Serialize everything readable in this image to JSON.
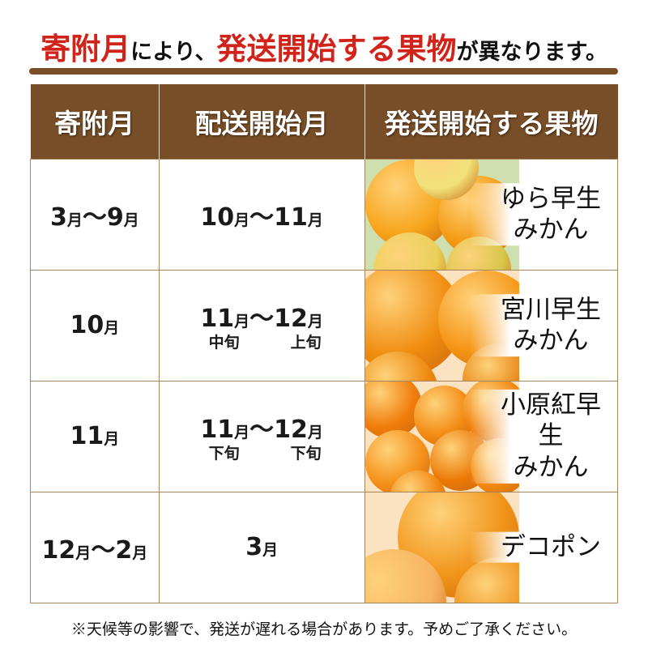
{
  "title": {
    "part1": "寄附月",
    "part2": "により、",
    "part3": "発送開始する果物",
    "part4": "が異なります。"
  },
  "colors": {
    "accent_red": "#d2231b",
    "header_brown": "#774e27",
    "orange": "#f28a12"
  },
  "headers": [
    "寄附月",
    "配送開始月",
    "発送開始する果物"
  ],
  "rows": [
    {
      "donation": [
        [
          "3",
          "月"
        ],
        [
          "～",
          ""
        ],
        [
          "9",
          "月"
        ]
      ],
      "delivery": [
        [
          "10",
          "月"
        ],
        [
          "～",
          ""
        ],
        [
          "11",
          "月"
        ]
      ],
      "sub": [],
      "fruit": [
        "ゆら早生",
        "みかん"
      ],
      "image": "yura-wase-mikan-photo"
    },
    {
      "donation": [
        [
          "10",
          "月"
        ]
      ],
      "delivery": [
        [
          "11",
          "月"
        ],
        [
          "～",
          ""
        ],
        [
          "12",
          "月"
        ]
      ],
      "sub": [
        "中旬",
        "上旬"
      ],
      "fruit": [
        "宮川早生",
        "みかん"
      ],
      "image": "miyagawa-wase-mikan-photo"
    },
    {
      "donation": [
        [
          "11",
          "月"
        ]
      ],
      "delivery": [
        [
          "11",
          "月"
        ],
        [
          "～",
          ""
        ],
        [
          "12",
          "月"
        ]
      ],
      "sub": [
        "下旬",
        "下旬"
      ],
      "fruit": [
        "小原紅早生",
        "みかん"
      ],
      "image": "ohara-beni-wase-mikan-photo"
    },
    {
      "donation": [
        [
          "12",
          "月"
        ],
        [
          "～",
          ""
        ],
        [
          "2",
          "月"
        ]
      ],
      "delivery": [
        [
          "3",
          "月"
        ]
      ],
      "sub": [],
      "fruit": [
        "デコポン"
      ],
      "image": "dekopon-photo"
    }
  ],
  "footer": "※天候等の影響で、発送が遅れる場合があります。予めご了承ください。"
}
